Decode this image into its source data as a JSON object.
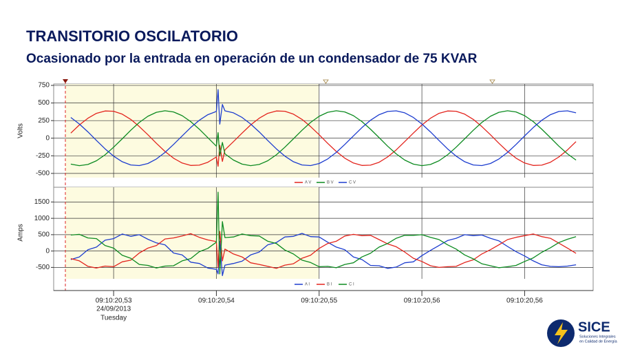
{
  "header": {
    "title": "TRANSITORIO OSCILATORIO",
    "subtitle": "Ocasionado por la entrada en operación de un condensador de 75 KVAR"
  },
  "logo": {
    "name": "SICE",
    "tagline": [
      "Soluciones Integrales",
      "en Calidad de Energía"
    ]
  },
  "chart_data": [
    {
      "type": "line",
      "ylabel": "Volts",
      "grid": true,
      "legend": "bottom",
      "xlim": [
        -7,
        56
      ],
      "ylim": [
        -560,
        770
      ],
      "yticks": [
        -500,
        -250,
        0,
        250,
        500,
        750
      ],
      "x": [
        -5,
        -4,
        -3,
        -2,
        -1,
        0,
        1,
        2,
        3,
        4,
        5,
        6,
        7,
        8,
        9,
        10,
        11,
        12,
        12.2,
        12.4,
        12.7,
        13,
        14,
        15,
        16,
        17,
        18,
        19,
        20,
        21,
        22,
        23,
        24,
        25,
        26,
        27,
        28,
        29,
        30,
        31,
        32,
        33,
        34,
        35,
        36,
        37,
        38,
        39,
        40,
        41,
        42,
        43,
        44,
        45,
        46,
        47,
        48,
        49,
        50,
        51,
        52,
        53,
        54
      ],
      "series": [
        {
          "name": "A V",
          "color": "#e3231c",
          "values": [
            73,
            188,
            284,
            353,
            387,
            383,
            342,
            267,
            166,
            49,
            -73,
            -188,
            -284,
            -353,
            -387,
            -383,
            -342,
            -267,
            -400,
            -100,
            -330,
            -166,
            -49,
            73,
            188,
            284,
            353,
            387,
            383,
            342,
            267,
            166,
            49,
            -73,
            -188,
            -284,
            -353,
            -387,
            -383,
            -342,
            -267,
            -166,
            -49,
            73,
            188,
            284,
            353,
            387,
            383,
            342,
            267,
            166,
            49,
            -73,
            -188,
            -284,
            -353,
            -387,
            -383,
            -342,
            -267,
            -166,
            -49
          ]
        },
        {
          "name": "B V",
          "color": "#0b8a1f",
          "values": [
            -368,
            -390,
            -373,
            -320,
            -236,
            -128,
            -8,
            113,
            223,
            311,
            368,
            390,
            373,
            320,
            236,
            128,
            8,
            -113,
            80,
            -250,
            -60,
            -223,
            -311,
            -368,
            -390,
            -373,
            -320,
            -236,
            -128,
            -8,
            113,
            223,
            311,
            368,
            390,
            373,
            320,
            236,
            128,
            8,
            -113,
            -223,
            -311,
            -368,
            -390,
            -373,
            -320,
            -236,
            -128,
            -8,
            113,
            223,
            311,
            368,
            390,
            373,
            320,
            236,
            128,
            8,
            -113,
            -223,
            -311
          ]
        },
        {
          "name": "C V",
          "color": "#1c3ccf",
          "values": [
            295,
            202,
            89,
            -33,
            -151,
            -255,
            -334,
            -380,
            -389,
            -360,
            -295,
            -202,
            -89,
            33,
            151,
            255,
            334,
            380,
            690,
            200,
            480,
            389,
            360,
            295,
            202,
            89,
            -33,
            -151,
            -255,
            -334,
            -380,
            -389,
            -360,
            -295,
            -202,
            -89,
            33,
            151,
            255,
            334,
            380,
            389,
            360,
            295,
            202,
            89,
            -33,
            -151,
            -255,
            -334,
            -380,
            -389,
            -360,
            -295,
            -202,
            -89,
            33,
            151,
            255,
            334,
            380,
            389,
            360
          ]
        }
      ]
    },
    {
      "type": "line",
      "ylabel": "Amps",
      "grid": true,
      "legend": "bottom",
      "xlim": [
        -7,
        56
      ],
      "ylim": [
        -850,
        1950
      ],
      "yticks": [
        -500,
        0,
        500,
        1000,
        1500
      ],
      "xticks": [
        {
          "value": 0,
          "label": "09:10:20,53"
        },
        {
          "value": 12,
          "label": "09:10:20,54"
        },
        {
          "value": 24,
          "label": "09:10:20,55"
        },
        {
          "value": 36,
          "label": "09:10:20,56"
        },
        {
          "value": 48,
          "label": "09:10:20,56"
        }
      ],
      "date_label": "24/09/2013",
      "day_label": "Tuesday",
      "x": [
        -5,
        -4,
        -3,
        -2,
        -1,
        0,
        1,
        2,
        3,
        4,
        5,
        6,
        7,
        8,
        9,
        10,
        11,
        12,
        12.2,
        12.4,
        12.7,
        13,
        14,
        15,
        16,
        17,
        18,
        19,
        20,
        21,
        22,
        23,
        24,
        25,
        26,
        27,
        28,
        29,
        30,
        31,
        32,
        33,
        34,
        35,
        36,
        37,
        38,
        39,
        40,
        41,
        42,
        43,
        44,
        45,
        46,
        47,
        48,
        49,
        50,
        51,
        52,
        53,
        54
      ],
      "series": [
        {
          "name": "A I",
          "color": "#1c3ccf",
          "values": [
            -260,
            -180,
            40,
            120,
            330,
            380,
            520,
            450,
            500,
            360,
            250,
            190,
            -60,
            -120,
            -340,
            -380,
            -520,
            -560,
            -700,
            300,
            -750,
            -430,
            -380,
            -310,
            -120,
            -30,
            190,
            260,
            430,
            450,
            540,
            440,
            430,
            270,
            120,
            40,
            -180,
            -260,
            -440,
            -450,
            -530,
            -490,
            -360,
            -330,
            -140,
            20,
            170,
            320,
            390,
            500,
            470,
            490,
            390,
            310,
            140,
            -20,
            -150,
            -300,
            -420,
            -470,
            -480,
            -460,
            -420
          ]
        },
        {
          "name": "B I",
          "color": "#e3231c",
          "values": [
            -230,
            -300,
            -470,
            -520,
            -460,
            -480,
            -330,
            -280,
            -60,
            90,
            170,
            370,
            400,
            460,
            530,
            420,
            340,
            290,
            -500,
            600,
            -300,
            60,
            -90,
            -180,
            -360,
            -410,
            -470,
            -530,
            -430,
            -390,
            -220,
            -130,
            80,
            230,
            300,
            460,
            510,
            470,
            480,
            350,
            220,
            130,
            -30,
            -220,
            -320,
            -450,
            -500,
            -480,
            -470,
            -350,
            -270,
            -90,
            40,
            190,
            350,
            420,
            470,
            520,
            440,
            390,
            240,
            90,
            -70
          ]
        },
        {
          "name": "C I",
          "color": "#0b8a1f",
          "values": [
            490,
            510,
            400,
            380,
            170,
            90,
            -130,
            -220,
            -410,
            -440,
            -520,
            -460,
            -450,
            -300,
            -230,
            -20,
            80,
            270,
            1800,
            -700,
            900,
            410,
            430,
            520,
            470,
            460,
            300,
            230,
            30,
            -90,
            -280,
            -350,
            -480,
            -470,
            -510,
            -410,
            -360,
            -180,
            -70,
            120,
            230,
            390,
            480,
            480,
            500,
            420,
            350,
            190,
            60,
            -120,
            -240,
            -390,
            -450,
            -510,
            -480,
            -440,
            -320,
            -210,
            -40,
            100,
            260,
            360,
            440
          ]
        }
      ]
    }
  ]
}
